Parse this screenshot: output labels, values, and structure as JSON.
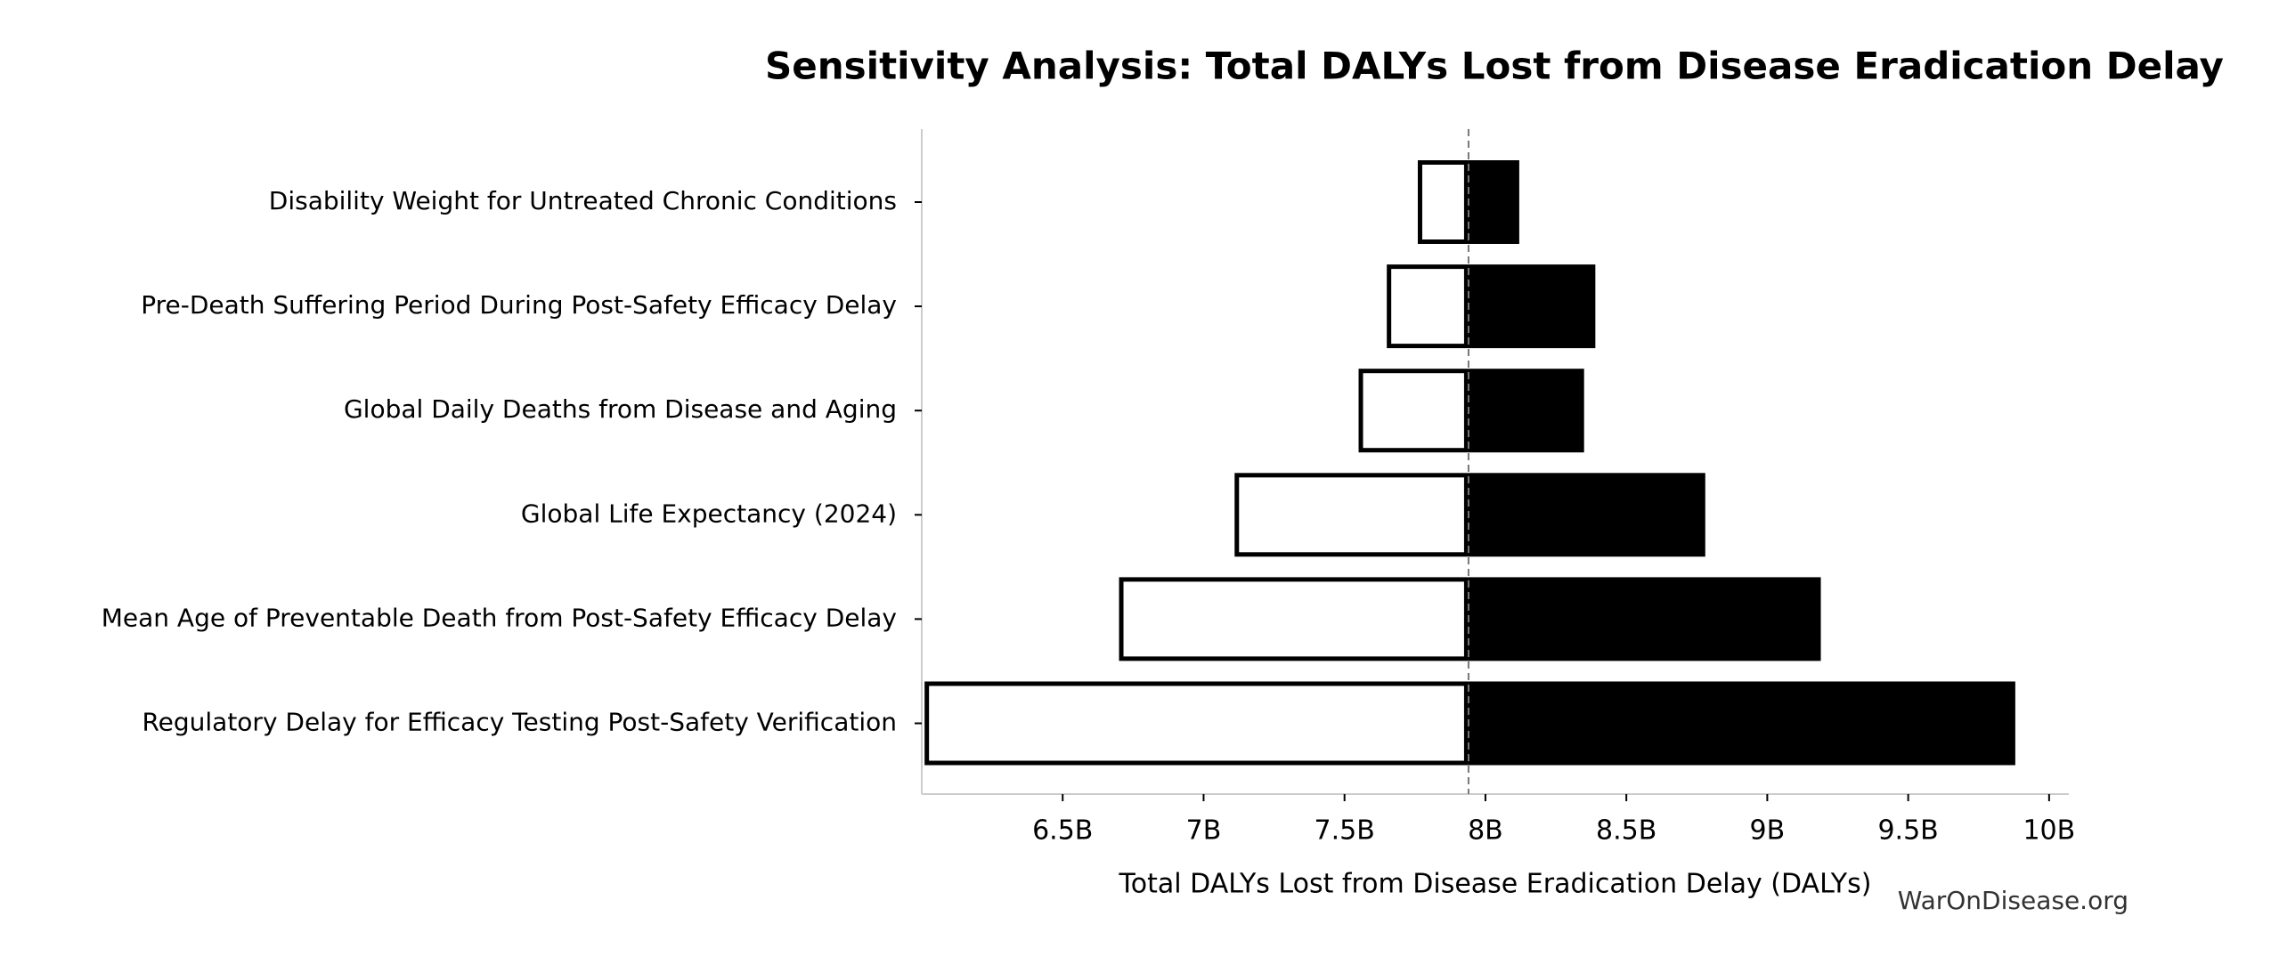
{
  "chart_data": {
    "type": "tornado",
    "title": "Sensitivity Analysis: Total DALYs Lost from Disease Eradication Delay",
    "x_label": "Total DALYs Lost from Disease Eradication Delay (DALYs)",
    "watermark": "WarOnDisease.org",
    "categories": [
      "Disability Weight for Untreated Chronic Conditions",
      "Pre-Death Suffering Period During Post-Safety Efficacy Delay",
      "Global Daily Deaths from Disease and Aging",
      "Global Life Expectancy (2024)",
      "Mean Age of Preventable Death from Post-Safety Efficacy Delay",
      "Regulatory Delay for Efficacy Testing Post-Safety Verification"
    ],
    "baseline": 7.94,
    "series": [
      {
        "color": "#ffffff",
        "edgecolor": "#000000",
        "values": [
          7.76,
          7.65,
          7.55,
          7.11,
          6.7,
          6.01
        ]
      },
      {
        "color": "#000000",
        "values": [
          8.12,
          8.39,
          8.35,
          8.78,
          9.19,
          9.88
        ]
      }
    ],
    "xlim": [
      6.0,
      10.07
    ],
    "xticks": [
      {
        "value": 6.5,
        "label": "6.5B"
      },
      {
        "value": 7,
        "label": "7B"
      },
      {
        "value": 7.5,
        "label": "7.5B"
      },
      {
        "value": 8,
        "label": "8B"
      },
      {
        "value": 8.5,
        "label": "8.5B"
      },
      {
        "value": 9,
        "label": "9B"
      },
      {
        "value": 9.5,
        "label": "9.5B"
      },
      {
        "value": 10,
        "label": "10B"
      }
    ]
  }
}
